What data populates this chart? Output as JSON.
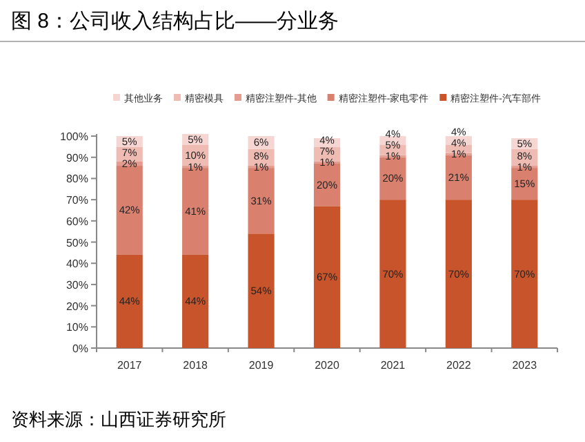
{
  "chart_data": {
    "type": "bar",
    "stacked": true,
    "title": "图 8：公司收入结构占比——分业务",
    "categories": [
      "2017",
      "2018",
      "2019",
      "2020",
      "2021",
      "2022",
      "2023"
    ],
    "series": [
      {
        "name": "精密注塑件-汽车部件",
        "color": "#c8542b",
        "values": [
          44,
          44,
          54,
          67,
          70,
          70,
          70
        ],
        "value_labels": [
          "44%",
          "44%",
          "54%",
          "67%",
          "70%",
          "70%",
          "70%"
        ]
      },
      {
        "name": "精密注塑件-家电零件",
        "color": "#d9806f",
        "values": [
          42,
          41,
          31,
          20,
          20,
          21,
          15
        ],
        "value_labels": [
          "42%",
          "41%",
          "31%",
          "20%",
          "20%",
          "21%",
          "15%"
        ]
      },
      {
        "name": "精密注塑件-其他",
        "color": "#e59c90",
        "values": [
          2,
          1,
          1,
          1,
          1,
          1,
          1
        ],
        "value_labels": [
          "2%",
          "1%",
          "1%",
          "1%",
          "1%",
          "1%",
          "1%"
        ]
      },
      {
        "name": "精密模具",
        "color": "#efbcb4",
        "values": [
          7,
          10,
          8,
          7,
          5,
          4,
          8
        ],
        "value_labels": [
          "7%",
          "10%",
          "8%",
          "7%",
          "5%",
          "4%",
          "8%"
        ]
      },
      {
        "name": "其他业务",
        "color": "#f6d6d2",
        "values": [
          5,
          5,
          6,
          4,
          4,
          4,
          5
        ],
        "value_labels": [
          "5%",
          "5%",
          "6%",
          "4%",
          "4%",
          "4%",
          "5%"
        ]
      }
    ],
    "ylim": [
      0,
      101
    ],
    "yticks": [
      {
        "value": 0,
        "label": "0%"
      },
      {
        "value": 10,
        "label": "10%"
      },
      {
        "value": 20,
        "label": "20%"
      },
      {
        "value": 30,
        "label": "30%"
      },
      {
        "value": 40,
        "label": "40%"
      },
      {
        "value": 50,
        "label": "50%"
      },
      {
        "value": 60,
        "label": "60%"
      },
      {
        "value": 70,
        "label": "70%"
      },
      {
        "value": 80,
        "label": "80%"
      },
      {
        "value": 90,
        "label": "90%"
      },
      {
        "value": 100,
        "label": "100%"
      }
    ],
    "legend": "top",
    "grid": false,
    "annotations": [
      "资料来源：山西证券研究所"
    ]
  }
}
